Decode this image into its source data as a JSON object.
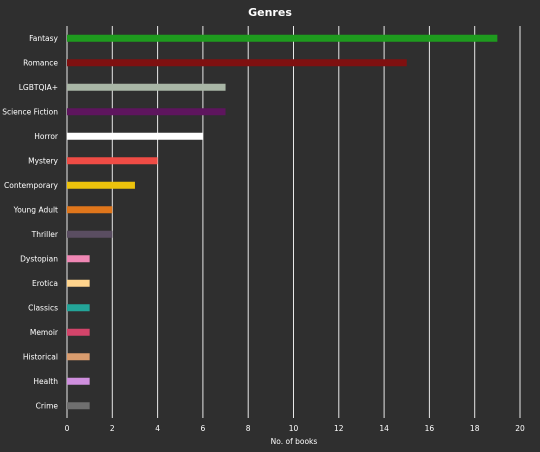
{
  "chart_data": {
    "type": "bar",
    "orientation": "horizontal",
    "title": "Genres",
    "xlabel": "No. of books",
    "ylabel": "",
    "xlim": [
      0,
      20
    ],
    "xticks": [
      0,
      2,
      4,
      6,
      8,
      10,
      12,
      14,
      16,
      18,
      20
    ],
    "grid": "vertical",
    "categories": [
      "Fantasy",
      "Romance",
      "LGBTQIA+",
      "Science Fiction",
      "Horror",
      "Mystery",
      "Contemporary",
      "Young Adult",
      "Thriller",
      "Dystopian",
      "Erotica",
      "Classics",
      "Memoir",
      "Historical",
      "Health",
      "Crime"
    ],
    "values": [
      19,
      15,
      7,
      7,
      6,
      4,
      3,
      2,
      2,
      1,
      1,
      1,
      1,
      1,
      1,
      1
    ],
    "colors": [
      "#1e9b1e",
      "#7f1010",
      "#a9b6a6",
      "#5e155e",
      "#ffffff",
      "#ef4c45",
      "#ecc20c",
      "#e0761b",
      "#5a4d61",
      "#ef87b4",
      "#ffd48d",
      "#23a599",
      "#d3446a",
      "#d99c6e",
      "#cf8fde",
      "#6f6f6f"
    ]
  },
  "colors": {
    "background": "#2f2f2f",
    "gridline": "#e8e8e8",
    "text": "#ffffff"
  }
}
